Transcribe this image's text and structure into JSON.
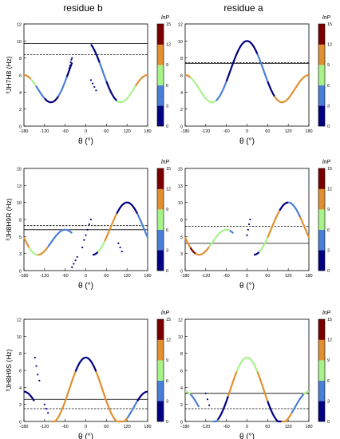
{
  "figure": {
    "column_titles": [
      "residue b",
      "residue a"
    ],
    "colorbar_label": "lnP",
    "colorbar_ticks": [
      "0",
      "3",
      "6",
      "9",
      "12",
      "15"
    ],
    "colorbar_colors": [
      "#000080",
      "#4a7fd6",
      "#a8f28a",
      "#e09030",
      "#7a0000"
    ],
    "xlabel": "θ (°)",
    "ylabels": [
      "³JH7H8 (Hz)",
      "³JH8H9R (Hz)",
      "³JH8H9S (Hz)"
    ],
    "yticks": [
      "0",
      "2",
      "4",
      "6",
      "8",
      "10",
      "12"
    ],
    "xticks": [
      "-180",
      "-120",
      "-60",
      "0",
      "60",
      "120",
      "180"
    ]
  },
  "chart_data": [
    {
      "type": "line",
      "row": 0,
      "col": 0,
      "ylabel": "³JH7H8 (Hz)",
      "column_title": "residue b",
      "xlim": [
        -180,
        180
      ],
      "ylim": [
        0,
        12
      ],
      "curve": {
        "A": 5,
        "phase": 0,
        "B": 2,
        "offset": 10
      },
      "hline_solid": 9.7,
      "hline_dashed": 8.4,
      "segments": [
        [
          -180,
          -160,
          3
        ],
        [
          -160,
          -145,
          2
        ],
        [
          -145,
          -120,
          1
        ],
        [
          -120,
          -80,
          0
        ],
        [
          -80,
          -55,
          1
        ],
        [
          -55,
          -40,
          0
        ]
      ],
      "segments_b": [
        [
          15,
          40,
          0
        ],
        [
          40,
          60,
          1
        ],
        [
          60,
          90,
          0
        ],
        [
          90,
          145,
          2
        ],
        [
          145,
          180,
          3
        ]
      ],
      "dots": [
        [
          -48,
          6.8
        ],
        [
          -46,
          7.1
        ],
        [
          -44,
          7.5
        ],
        [
          -42,
          7.8
        ],
        [
          -40,
          8.0
        ],
        [
          15,
          5.4
        ],
        [
          20,
          5.0
        ],
        [
          25,
          4.6
        ],
        [
          30,
          4.2
        ]
      ]
    },
    {
      "type": "line",
      "row": 0,
      "col": 1,
      "ylabel": "³JH7H8 (Hz)",
      "column_title": "residue a",
      "xlim": [
        -180,
        180
      ],
      "ylim": [
        0,
        12
      ],
      "curve": {
        "A": 5,
        "phase": 0,
        "B": 2,
        "offset": 10
      },
      "hline_solid": 7.35,
      "hline_dashed": 7.45,
      "segments": [
        [
          -180,
          -165,
          3
        ],
        [
          -165,
          -140,
          2
        ],
        [
          -140,
          -90,
          2
        ],
        [
          -90,
          -60,
          1
        ],
        [
          -60,
          30,
          0
        ],
        [
          30,
          60,
          1
        ],
        [
          60,
          80,
          0
        ],
        [
          80,
          140,
          3
        ],
        [
          140,
          180,
          3
        ]
      ],
      "dots": []
    },
    {
      "type": "line",
      "row": 1,
      "col": 0,
      "ylabel": "³JH8H9R (Hz)",
      "column_title": "residue b",
      "xlim": [
        -180,
        180
      ],
      "ylim": [
        0,
        15
      ],
      "curve": {
        "A": 5.5,
        "phase": 120,
        "B": 2,
        "offset": 10
      },
      "hline_solid": 6.0,
      "hline_dashed": 6.6,
      "segments": [
        [
          -180,
          -165,
          3
        ],
        [
          -165,
          -140,
          2
        ],
        [
          -140,
          -110,
          3
        ],
        [
          -110,
          -75,
          1
        ],
        [
          -75,
          -40,
          1
        ]
      ],
      "segments_b": [
        [
          20,
          35,
          0
        ],
        [
          35,
          55,
          2
        ],
        [
          55,
          90,
          3
        ],
        [
          90,
          115,
          0
        ],
        [
          115,
          150,
          0
        ],
        [
          150,
          180,
          1
        ]
      ],
      "dots": [
        [
          -40,
          0.5
        ],
        [
          -35,
          1.0
        ],
        [
          -30,
          1.5
        ],
        [
          -25,
          2.0
        ],
        [
          -10,
          3.4
        ],
        [
          -5,
          4.5
        ],
        [
          0,
          5.2
        ],
        [
          5,
          6.0
        ],
        [
          10,
          6.8
        ],
        [
          15,
          7.5
        ],
        [
          95,
          4.0
        ],
        [
          100,
          3.4
        ],
        [
          105,
          2.8
        ]
      ]
    },
    {
      "type": "line",
      "row": 1,
      "col": 1,
      "ylabel": "³JH8H9R (Hz)",
      "column_title": "residue a",
      "xlim": [
        -180,
        180
      ],
      "ylim": [
        0,
        15
      ],
      "curve": {
        "A": 5.5,
        "phase": 120,
        "B": 2,
        "offset": 10
      },
      "hline_solid": 4.0,
      "hline_dashed": 6.5,
      "segments": [
        [
          -180,
          -165,
          3
        ],
        [
          -165,
          -150,
          4
        ],
        [
          -150,
          -110,
          3
        ],
        [
          -110,
          -90,
          2
        ],
        [
          -90,
          -50,
          2
        ],
        [
          -50,
          -40,
          1
        ]
      ],
      "segments_b": [
        [
          20,
          35,
          0
        ],
        [
          35,
          60,
          2
        ],
        [
          60,
          95,
          3
        ],
        [
          95,
          120,
          0
        ],
        [
          120,
          155,
          1
        ],
        [
          155,
          180,
          3
        ]
      ],
      "dots": [
        [
          0,
          5.2
        ],
        [
          3,
          6.0
        ],
        [
          6,
          6.8
        ],
        [
          9,
          7.5
        ]
      ]
    },
    {
      "type": "line",
      "row": 2,
      "col": 0,
      "ylabel": "³JH8H9S (Hz)",
      "column_title": "residue b",
      "xlim": [
        -180,
        180
      ],
      "ylim": [
        0,
        12
      ],
      "curve": {
        "A": 5.5,
        "phase": 0,
        "B": 2,
        "offset": 7.5
      },
      "hline_solid": 2.6,
      "hline_dashed": 1.5,
      "segments": [
        [
          -180,
          -150,
          0
        ],
        [
          -100,
          -60,
          3
        ],
        [
          -60,
          -30,
          3
        ],
        [
          -30,
          30,
          0
        ],
        [
          30,
          60,
          3
        ],
        [
          60,
          120,
          3
        ],
        [
          120,
          150,
          1
        ],
        [
          150,
          180,
          0
        ]
      ],
      "dots": [
        [
          -148,
          7.5
        ],
        [
          -144,
          6.5
        ],
        [
          -140,
          5.5
        ],
        [
          -135,
          4.8
        ],
        [
          -120,
          2.0
        ],
        [
          -115,
          1.5
        ],
        [
          -110,
          1.0
        ]
      ]
    },
    {
      "type": "line",
      "row": 2,
      "col": 1,
      "ylabel": "³JH8H9S (Hz)",
      "column_title": "residue a",
      "xlim": [
        -180,
        180
      ],
      "ylim": [
        0,
        12
      ],
      "curve": {
        "A": 5.5,
        "phase": 0,
        "B": 2,
        "offset": 7.5
      },
      "hline_solid": 3.3,
      "hline_dashed": 1.5,
      "segments": [
        [
          -180,
          -165,
          2
        ],
        [
          -165,
          -140,
          1
        ],
        [
          -100,
          -85,
          1
        ],
        [
          -85,
          -55,
          0
        ],
        [
          -55,
          -30,
          3
        ],
        [
          -30,
          30,
          2
        ],
        [
          30,
          60,
          3
        ],
        [
          60,
          100,
          0
        ],
        [
          100,
          130,
          3
        ],
        [
          130,
          165,
          1
        ],
        [
          165,
          180,
          2
        ]
      ],
      "dots": [
        [
          -120,
          3.3
        ],
        [
          -115,
          2.6
        ],
        [
          -110,
          1.9
        ]
      ]
    }
  ]
}
